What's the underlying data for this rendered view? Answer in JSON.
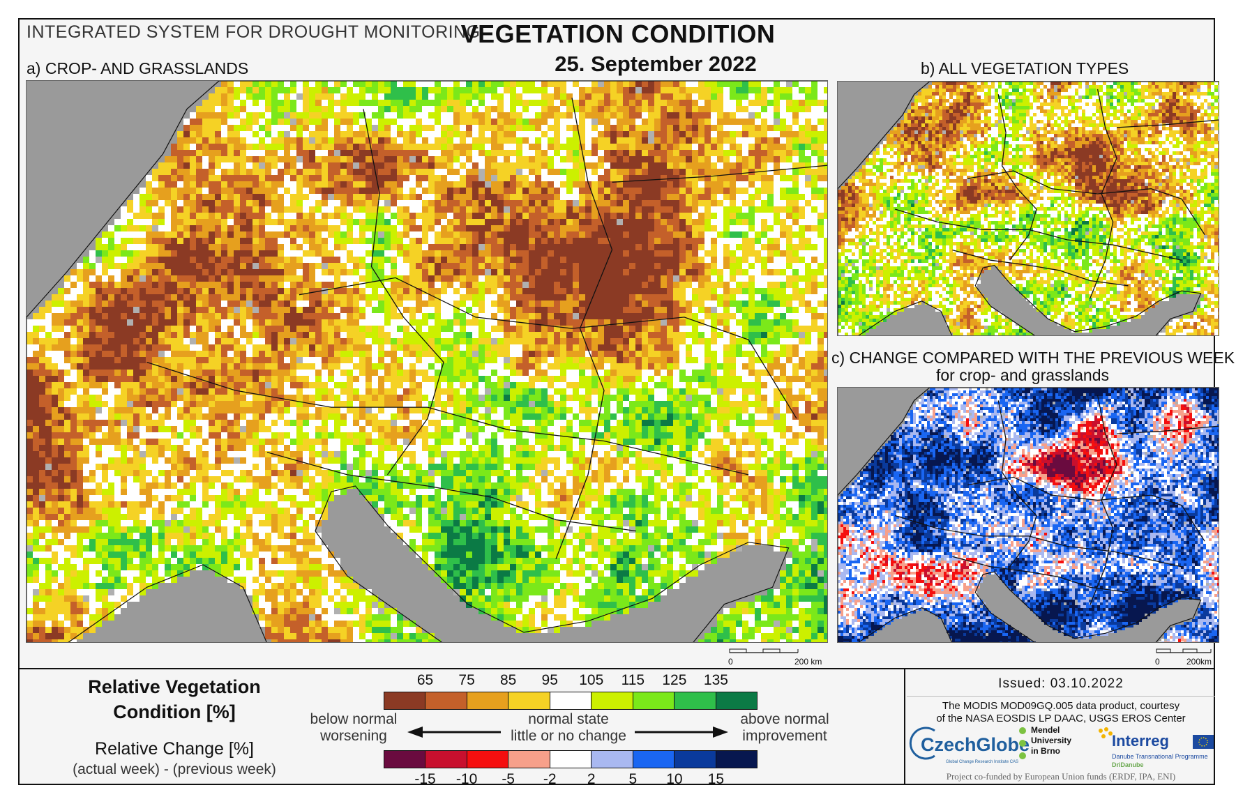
{
  "header": {
    "system_title": "INTEGRATED SYSTEM FOR DROUGHT MONITORING",
    "title": "VEGETATION CONDITION",
    "date": "25. September 2022"
  },
  "panels": {
    "a": {
      "label": "a) CROP- AND GRASSLANDS",
      "scale_zero": "0",
      "scale_end": "200 km",
      "palette": "condition"
    },
    "b": {
      "label": "b) ALL VEGETATION TYPES",
      "palette": "condition"
    },
    "c": {
      "label": "c) CHANGE COMPARED WITH THE PREVIOUS WEEK",
      "sublabel": "for crop- and grasslands",
      "scale_zero": "0",
      "scale_end": "200km",
      "palette": "change"
    }
  },
  "legend": {
    "condition_title_line1": "Relative Vegetation",
    "condition_title_line2": "Condition [%]",
    "change_title": "Relative Change [%]",
    "change_formula": "(actual week) - (previous week)",
    "condition_ticks": [
      "65",
      "75",
      "85",
      "95",
      "105",
      "115",
      "125",
      "135"
    ],
    "condition_colors": [
      "#8b3a24",
      "#c4602a",
      "#e6a01e",
      "#f5d225",
      "#ffffff",
      "#ccf000",
      "#7be81a",
      "#2fbf4a",
      "#0b7a45"
    ],
    "change_ticks": [
      "-15",
      "-10",
      "-5",
      "-2",
      "2",
      "5",
      "10",
      "15"
    ],
    "change_colors": [
      "#6a0b3f",
      "#c8102e",
      "#f50f0f",
      "#f7a08a",
      "#ffffff",
      "#a9b8f0",
      "#1a66f2",
      "#0a3a9c",
      "#07174f"
    ],
    "left_text_1": "below normal",
    "left_text_2": "worsening",
    "center_text_1": "normal state",
    "center_text_2": "little or no change",
    "right_text_1": "above normal",
    "right_text_2": "improvement"
  },
  "credits": {
    "issued": "Issued: 03.10.2022",
    "line1": "The MODIS MOD09GQ.005 data product, courtesy",
    "line2": "of the NASA EOSDIS LP DAAC, USGS EROS Center",
    "czechglobe": "CzechGlobe",
    "czechglobe_sub": "Global Change Research Institute CAS",
    "mendel_1": "Mendel",
    "mendel_2": "University",
    "mendel_3": "in Brno",
    "interreg": "Interreg",
    "interreg_sub": "Danube Transnational Programme",
    "dridanube": "DriDanube",
    "funded": "Project co-funded by European Union funds (ERDF, IPA, ENI)"
  }
}
